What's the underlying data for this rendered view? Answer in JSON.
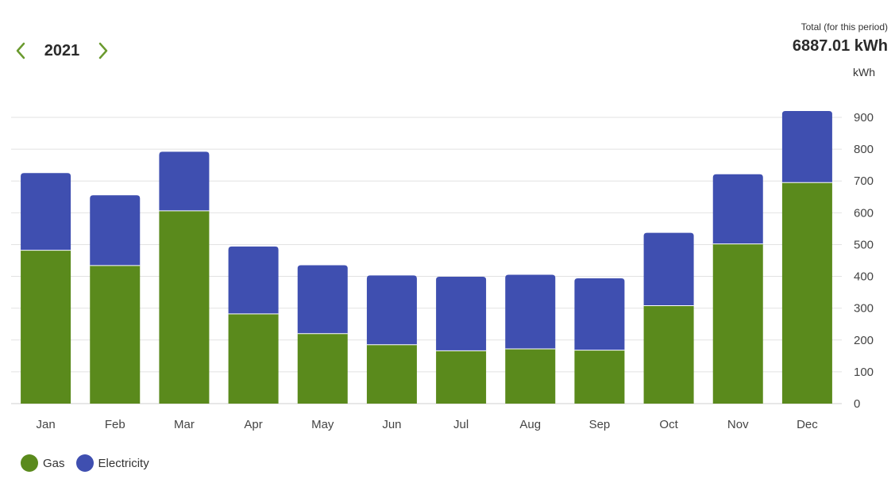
{
  "header": {
    "year": "2021",
    "total_caption": "Total (for this period)",
    "total_value": "6887.01 kWh"
  },
  "colors": {
    "gas": "#5a8a1c",
    "electricity": "#3f4fb0",
    "nav_arrow": "#6a9a2e",
    "grid": "#e2e2e2"
  },
  "chart_data": {
    "type": "bar",
    "stacked": true,
    "title": "",
    "xlabel": "",
    "ylabel": "kWh",
    "ylim": [
      0,
      900
    ],
    "yticks": [
      0,
      100,
      200,
      300,
      400,
      500,
      600,
      700,
      800,
      900
    ],
    "categories": [
      "Jan",
      "Feb",
      "Mar",
      "Apr",
      "May",
      "Jun",
      "Jul",
      "Aug",
      "Sep",
      "Oct",
      "Nov",
      "Dec"
    ],
    "series": [
      {
        "name": "Gas",
        "values": [
          482,
          434,
          606,
          282,
          220,
          185,
          166,
          172,
          168,
          308,
          502,
          695
        ]
      },
      {
        "name": "Electricity",
        "values": [
          243,
          221,
          186,
          212,
          215,
          218,
          233,
          233,
          226,
          229,
          219,
          225
        ]
      }
    ],
    "grid": true,
    "legend": "bottom-left"
  }
}
